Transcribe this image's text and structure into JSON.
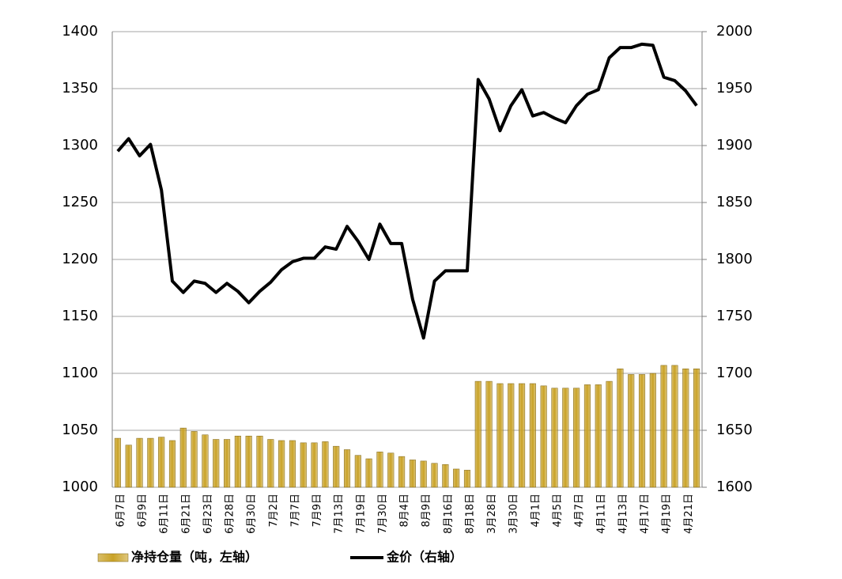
{
  "chart_data": {
    "type": "bar_line",
    "categories": [
      "6月7日",
      null,
      "6月9日",
      null,
      "6月11日",
      null,
      "6月21日",
      null,
      "6月23日",
      null,
      "6月28日",
      null,
      "6月30日",
      null,
      "7月2日",
      null,
      "7月7日",
      null,
      "7月9日",
      null,
      "7月13日",
      null,
      "7月19日",
      null,
      "7月30日",
      null,
      "8月4日",
      null,
      "8月9日",
      null,
      "8月16日",
      null,
      "8月18日",
      null,
      "3月28日",
      null,
      "3月30日",
      null,
      "4月1日",
      null,
      "4月5日",
      null,
      "4月7日",
      null,
      "4月11日",
      null,
      "4月13日",
      null,
      "4月17日",
      null,
      "4月19日",
      null,
      "4月21日",
      null
    ],
    "series": [
      {
        "name": "净持仓量（吨，左轴）",
        "type": "bar",
        "color": "#c9a227",
        "values": [
          1043,
          1037,
          1043,
          1043,
          1044,
          1041,
          1052,
          1049,
          1046,
          1042,
          1042,
          1045,
          1045,
          1045,
          1042,
          1041,
          1041,
          1039,
          1039,
          1040,
          1036,
          1033,
          1028,
          1025,
          1031,
          1030,
          1027,
          1024,
          1023,
          1021,
          1020,
          1016,
          1015,
          1093,
          1093,
          1091,
          1091,
          1091,
          1091,
          1089,
          1087,
          1087,
          1087,
          1090,
          1090,
          1093,
          1104,
          1099,
          1099,
          1100,
          1107,
          1107,
          1104,
          1104
        ]
      },
      {
        "name": "金价（右轴）",
        "type": "line",
        "axis": "y2",
        "color": "#000000",
        "values": [
          1895,
          1906,
          1891,
          1901,
          1861,
          1781,
          1771,
          1781,
          1779,
          1771,
          1779,
          1772,
          1762,
          1772,
          1780,
          1791,
          1798,
          1801,
          1801,
          1811,
          1809,
          1829,
          1816,
          1800,
          1831,
          1814,
          1814,
          1765,
          1731,
          1781,
          1790,
          1790,
          1790,
          1958,
          1941,
          1913,
          1935,
          1949,
          1926,
          1929,
          1924,
          1920,
          1935,
          1945,
          1949,
          1977,
          1986,
          1986,
          1989,
          1988,
          1960,
          1957,
          1948,
          1935
        ]
      }
    ],
    "ylim": [
      1000,
      1400
    ],
    "yticks": [
      1000,
      1050,
      1100,
      1150,
      1200,
      1250,
      1300,
      1350,
      1400
    ],
    "y2lim": [
      1600,
      2000
    ],
    "y2ticks": [
      1600,
      1650,
      1700,
      1750,
      1800,
      1850,
      1900,
      1950,
      2000
    ],
    "grid": true,
    "legend": "bottom"
  }
}
